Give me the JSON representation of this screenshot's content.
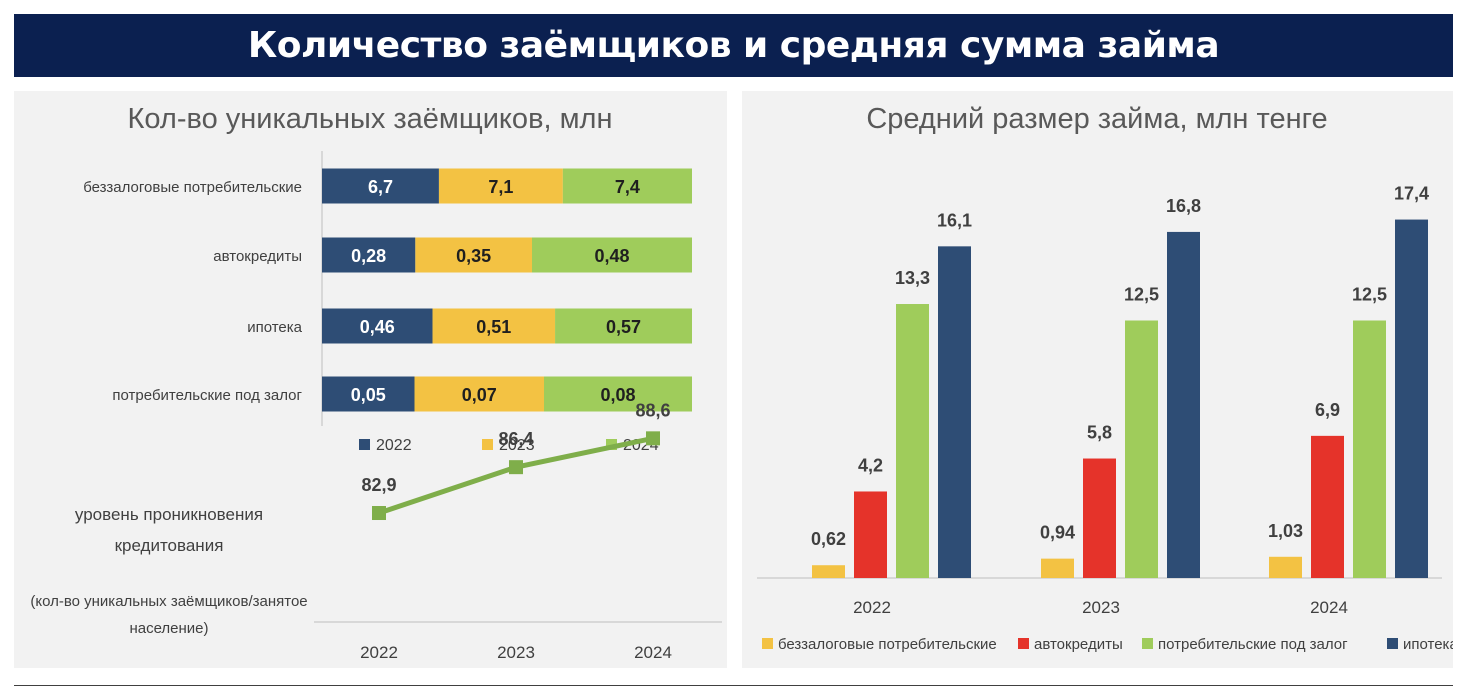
{
  "header": {
    "title": "Количество заёмщиков и средняя сумма займа"
  },
  "colors": {
    "banner": "#0b2050",
    "series_2022": "#2e4d75",
    "series_2023": "#f3c243",
    "series_2024": "#9fcc5b",
    "auto": "#e5332a",
    "line": "#7fae4a",
    "panel": "#f2f2f2"
  },
  "chart_data": [
    {
      "type": "bar",
      "orientation": "horizontal-stacked",
      "title": "Кол-во уникальных заёмщиков, млн",
      "categories": [
        "беззалоговые потребительские",
        "автокредиты",
        "ипотека",
        "потребительские под залог"
      ],
      "series": [
        {
          "name": "2022",
          "values": [
            6.7,
            0.28,
            0.46,
            0.05
          ],
          "labels": [
            "6,7",
            "0,28",
            "0,46",
            "0,05"
          ]
        },
        {
          "name": "2023",
          "values": [
            7.1,
            0.35,
            0.51,
            0.07
          ],
          "labels": [
            "7,1",
            "0,35",
            "0,51",
            "0,07"
          ]
        },
        {
          "name": "2024",
          "values": [
            7.4,
            0.48,
            0.57,
            0.08
          ],
          "labels": [
            "7,4",
            "0,48",
            "0,57",
            "0,08"
          ]
        }
      ],
      "normalized": true,
      "legend": "bottom"
    },
    {
      "type": "line",
      "title": "уровень проникновения кредитования",
      "subtitle": "(кол-во уникальных заёмщиков/занятое население)",
      "x": [
        "2022",
        "2023",
        "2024"
      ],
      "values": [
        82.9,
        86.4,
        88.6
      ],
      "labels": [
        "82,9",
        "86,4",
        "88,6"
      ]
    },
    {
      "type": "bar",
      "title": "Средний размер займа, млн тенге",
      "categories": [
        "2022",
        "2023",
        "2024"
      ],
      "series": [
        {
          "name": "беззалоговые потребительские",
          "values": [
            0.62,
            0.94,
            1.03
          ],
          "labels": [
            "0,62",
            "0,94",
            "1,03"
          ]
        },
        {
          "name": "автокредиты",
          "values": [
            4.2,
            5.8,
            6.9
          ],
          "labels": [
            "4,2",
            "5,8",
            "6,9"
          ]
        },
        {
          "name": "потребительские под залог",
          "values": [
            13.3,
            12.5,
            12.5
          ],
          "labels": [
            "13,3",
            "12,5",
            "12,5"
          ]
        },
        {
          "name": "ипотека",
          "values": [
            16.1,
            16.8,
            17.4
          ],
          "labels": [
            "16,1",
            "16,8",
            "17,4"
          ]
        }
      ],
      "legend": "bottom",
      "grid": false
    }
  ]
}
